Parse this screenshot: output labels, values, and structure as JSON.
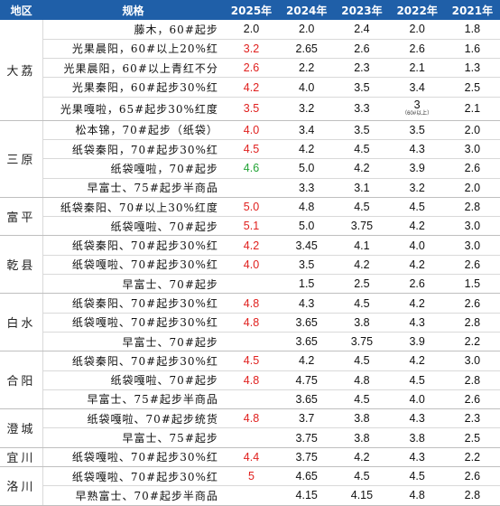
{
  "headers": [
    "地区",
    "规格",
    "2025年",
    "2024年",
    "2023年",
    "2022年",
    "2021年"
  ],
  "regions": [
    {
      "name": "大荔",
      "rows": [
        {
          "spec": "藤木，60#起步",
          "y2025": "2.0",
          "c2025": "black",
          "y2024": "2.0",
          "y2023": "2.4",
          "y2022": "2.0",
          "y2021": "1.8"
        },
        {
          "spec": "光果晨阳，60#以上20%红",
          "y2025": "3.2",
          "c2025": "red",
          "y2024": "2.65",
          "y2023": "2.6",
          "y2022": "2.6",
          "y2021": "1.6"
        },
        {
          "spec": "光果晨阳，60#以上青红不分",
          "y2025": "2.6",
          "c2025": "red",
          "y2024": "2.2",
          "y2023": "2.3",
          "y2022": "2.1",
          "y2021": "1.3"
        },
        {
          "spec": "光果秦阳，60#起步30%红",
          "y2025": "4.2",
          "c2025": "red",
          "y2024": "4.0",
          "y2023": "3.5",
          "y2022": "3.4",
          "y2021": "2.5"
        },
        {
          "spec": "光果嘎啦，65#起步30%红度",
          "y2025": "3.5",
          "c2025": "red",
          "y2024": "3.2",
          "y2023": "3.3",
          "y2022": "3",
          "y2022_note": "（60#以上）",
          "y2021": "2.1"
        }
      ]
    },
    {
      "name": "三原",
      "rows": [
        {
          "spec": "松本锦，70#起步（纸袋）",
          "y2025": "4.0",
          "c2025": "red",
          "y2024": "3.4",
          "y2023": "3.5",
          "y2022": "3.5",
          "y2021": "2.0"
        },
        {
          "spec": "纸袋秦阳，70#起步30%红",
          "y2025": "4.5",
          "c2025": "red",
          "y2024": "4.2",
          "y2023": "4.5",
          "y2022": "4.3",
          "y2021": "3.0"
        },
        {
          "spec": "纸袋嘎啦，70#起步",
          "y2025": "4.6",
          "c2025": "green",
          "y2024": "5.0",
          "y2023": "4.2",
          "y2022": "3.9",
          "y2021": "2.6"
        },
        {
          "spec": "早富士、75#起步半商品",
          "y2025": "",
          "c2025": "black",
          "y2024": "3.3",
          "y2023": "3.1",
          "y2022": "3.2",
          "y2021": "2.0"
        }
      ]
    },
    {
      "name": "富平",
      "rows": [
        {
          "spec": "纸袋秦阳、70#以上30%红度",
          "y2025": "5.0",
          "c2025": "red",
          "y2024": "4.8",
          "y2023": "4.5",
          "y2022": "4.5",
          "y2021": "2.8"
        },
        {
          "spec": "纸袋嘎啦、70#起步",
          "y2025": "5.1",
          "c2025": "red",
          "y2024": "5.0",
          "y2023": "3.75",
          "y2022": "4.2",
          "y2021": "3.0"
        }
      ]
    },
    {
      "name": "乾县",
      "rows": [
        {
          "spec": "纸袋秦阳、70#起步30%红",
          "y2025": "4.2",
          "c2025": "red",
          "y2024": "3.45",
          "y2023": "4.1",
          "y2022": "4.0",
          "y2021": "3.0"
        },
        {
          "spec": "纸袋嘎啦、70#起步30%红",
          "y2025": "4.0",
          "c2025": "red",
          "y2024": "3.5",
          "y2023": "4.2",
          "y2022": "4.2",
          "y2021": "2.6"
        },
        {
          "spec": "早富士、70#起步",
          "y2025": "",
          "c2025": "black",
          "y2024": "1.5",
          "y2023": "2.5",
          "y2022": "2.6",
          "y2021": "1.5"
        }
      ]
    },
    {
      "name": "白水",
      "rows": [
        {
          "spec": "纸袋秦阳、70#起步30%红",
          "y2025": "4.8",
          "c2025": "red",
          "y2024": "4.3",
          "y2023": "4.5",
          "y2022": "4.2",
          "y2021": "2.6"
        },
        {
          "spec": "纸袋嘎啦、70#起步30%红",
          "y2025": "4.8",
          "c2025": "red",
          "y2024": "3.65",
          "y2023": "3.8",
          "y2022": "4.3",
          "y2021": "2.8"
        },
        {
          "spec": "早富士、70#起步",
          "y2025": "",
          "c2025": "black",
          "y2024": "3.65",
          "y2023": "3.75",
          "y2022": "3.9",
          "y2021": "2.2"
        }
      ]
    },
    {
      "name": "合阳",
      "rows": [
        {
          "spec": "纸袋秦阳、70#起步30%红",
          "y2025": "4.5",
          "c2025": "red",
          "y2024": "4.2",
          "y2023": "4.5",
          "y2022": "4.2",
          "y2021": "3.0"
        },
        {
          "spec": "纸袋嘎啦、70#起步",
          "y2025": "4.8",
          "c2025": "red",
          "y2024": "4.75",
          "y2023": "4.8",
          "y2022": "4.5",
          "y2021": "2.8"
        },
        {
          "spec": "早富士、75#起步半商品",
          "y2025": "",
          "c2025": "black",
          "y2024": "3.65",
          "y2023": "4.5",
          "y2022": "4.0",
          "y2021": "2.6"
        }
      ]
    },
    {
      "name": "澄城",
      "rows": [
        {
          "spec": "纸袋嘎啦、70#起步统货",
          "y2025": "4.8",
          "c2025": "red",
          "y2024": "3.7",
          "y2023": "3.8",
          "y2022": "4.3",
          "y2021": "2.3"
        },
        {
          "spec": "早富士、75#起步",
          "y2025": "",
          "c2025": "black",
          "y2024": "3.75",
          "y2023": "3.8",
          "y2022": "3.8",
          "y2021": "2.5"
        }
      ]
    },
    {
      "name": "宜川",
      "rows": [
        {
          "spec": "纸袋嘎啦、70#起步30%红",
          "y2025": "4.4",
          "c2025": "red",
          "y2024": "3.75",
          "y2023": "4.2",
          "y2022": "4.3",
          "y2021": "2.2"
        }
      ]
    },
    {
      "name": "洛川",
      "rows": [
        {
          "spec": "纸袋嘎啦、70#起步30%红",
          "y2025": "5",
          "c2025": "red",
          "y2024": "4.65",
          "y2023": "4.5",
          "y2022": "4.5",
          "y2021": "2.6"
        },
        {
          "spec": "早熟富士、70#起步半商品",
          "y2025": "",
          "c2025": "black",
          "y2024": "4.15",
          "y2023": "4.15",
          "y2022": "4.8",
          "y2021": "2.8"
        }
      ]
    }
  ]
}
